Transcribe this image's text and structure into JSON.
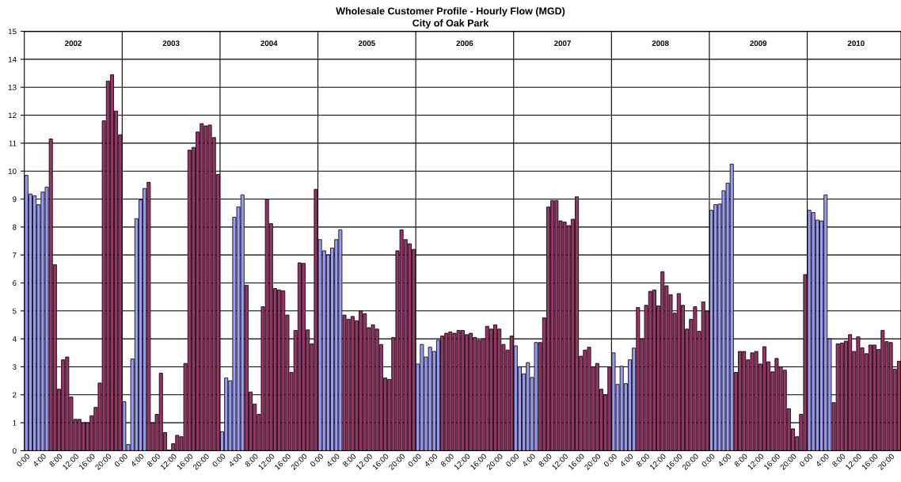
{
  "chart_data": {
    "type": "bar",
    "title": "Wholesale Customer Profile - Hourly Flow (MGD)",
    "subtitle": "City of Oak Park",
    "categories": [
      "0:00",
      null,
      null,
      null,
      "4:00",
      null,
      null,
      null,
      "8:00",
      null,
      null,
      null,
      "12:00",
      null,
      null,
      null,
      "16:00",
      null,
      null,
      null,
      "20:00",
      null,
      null,
      null,
      "0:00",
      null,
      null,
      null,
      "4:00",
      null,
      null,
      null,
      "8:00",
      null,
      null,
      null,
      "12:00",
      null,
      null,
      null,
      "16:00",
      null,
      null,
      null,
      "20:00",
      null,
      null,
      null,
      "0:00",
      null,
      null,
      null,
      "4:00",
      null,
      null,
      null,
      "8:00",
      null,
      null,
      null,
      "12:00",
      null,
      null,
      null,
      "16:00",
      null,
      null,
      null,
      "20:00",
      null,
      null,
      null,
      "0:00",
      null,
      null,
      null,
      "4:00",
      null,
      null,
      null,
      "8:00",
      null,
      null,
      null,
      "12:00",
      null,
      null,
      null,
      "16:00",
      null,
      null,
      null,
      "20:00",
      null,
      null,
      null,
      "0:00",
      null,
      null,
      null,
      "4:00",
      null,
      null,
      null,
      "8:00",
      null,
      null,
      null,
      "12:00",
      null,
      null,
      null,
      "16:00",
      null,
      null,
      null,
      "20:00",
      null,
      null,
      null,
      "0:00",
      null,
      null,
      null,
      "4:00",
      null,
      null,
      null,
      "8:00",
      null,
      null,
      null,
      "12:00",
      null,
      null,
      null,
      "16:00",
      null,
      null,
      null,
      "20:00",
      null,
      null,
      null,
      "0:00",
      null,
      null,
      null,
      "4:00",
      null,
      null,
      null,
      "8:00",
      null,
      null,
      null,
      "12:00",
      null,
      null,
      null,
      "16:00",
      null,
      null,
      null,
      "20:00",
      null,
      null,
      null,
      "0:00",
      null,
      null,
      null,
      "4:00",
      null,
      null,
      null,
      "8:00",
      null,
      null,
      null,
      "12:00",
      null,
      null,
      null,
      "16:00",
      null,
      null,
      null,
      "20:00",
      null,
      null,
      null,
      "0:00",
      null,
      null,
      null,
      "4:00",
      null,
      null,
      null,
      "8:00",
      null,
      null,
      null,
      "12:00",
      null,
      null,
      null,
      "16:00",
      null,
      null,
      null,
      "20:00",
      null,
      null
    ],
    "values": [
      9.85,
      9.18,
      9.12,
      8.8,
      9.25,
      9.43,
      11.15,
      6.65,
      2.2,
      3.25,
      3.35,
      1.92,
      1.12,
      1.12,
      1.0,
      1.0,
      1.25,
      1.55,
      2.42,
      11.8,
      13.22,
      13.45,
      12.15,
      11.3,
      1.75,
      0.22,
      3.28,
      8.3,
      8.97,
      9.38,
      9.6,
      1.0,
      1.3,
      2.77,
      0.65,
      0.02,
      0.25,
      0.55,
      0.5,
      3.12,
      10.75,
      10.85,
      11.4,
      11.7,
      11.62,
      11.65,
      11.2,
      9.88,
      0.68,
      2.6,
      2.5,
      8.35,
      8.72,
      9.15,
      5.92,
      2.1,
      1.67,
      1.3,
      5.15,
      9.0,
      8.12,
      5.8,
      5.75,
      5.72,
      4.85,
      2.8,
      4.3,
      6.72,
      6.7,
      4.32,
      3.82,
      9.35,
      7.55,
      7.15,
      7.0,
      7.25,
      7.55,
      7.9,
      4.85,
      4.7,
      4.8,
      4.65,
      5.0,
      4.9,
      4.4,
      4.5,
      4.35,
      3.8,
      2.6,
      2.55,
      4.05,
      7.15,
      7.9,
      7.55,
      7.4,
      7.2,
      3.1,
      3.8,
      3.35,
      3.7,
      3.55,
      3.95,
      4.1,
      4.2,
      4.25,
      4.2,
      4.3,
      4.3,
      4.15,
      4.2,
      4.05,
      3.95,
      4.0,
      4.45,
      4.35,
      4.5,
      4.35,
      3.8,
      3.6,
      4.1,
      3.75,
      3.0,
      2.75,
      3.15,
      2.62,
      3.87,
      3.87,
      4.75,
      8.72,
      8.95,
      8.95,
      8.22,
      8.18,
      8.05,
      8.28,
      9.08,
      3.38,
      3.6,
      3.7,
      3.0,
      3.12,
      2.2,
      2.0,
      3.0,
      3.5,
      2.37,
      3.02,
      2.4,
      3.25,
      3.67,
      5.12,
      4.0,
      5.2,
      5.7,
      5.75,
      5.18,
      6.4,
      5.9,
      5.58,
      4.92,
      5.62,
      5.2,
      4.35,
      4.7,
      5.15,
      4.27,
      5.32,
      4.98,
      8.6,
      8.8,
      8.82,
      9.3,
      9.57,
      10.25,
      2.8,
      3.55,
      3.55,
      3.25,
      3.5,
      3.55,
      3.1,
      3.72,
      3.18,
      2.82,
      3.3,
      3.0,
      2.88,
      1.5,
      0.78,
      0.5,
      1.3,
      6.3,
      8.6,
      8.52,
      8.25,
      8.22,
      9.15,
      4.0,
      1.72,
      3.82,
      3.85,
      3.92,
      4.15,
      3.55,
      4.07,
      3.68,
      3.47,
      3.78,
      3.78,
      3.62,
      4.3,
      3.9,
      3.87,
      2.92,
      3.2
    ],
    "colors": [
      "#9a9af5",
      "#9a9af5",
      "#9a9af5",
      "#9a9af5",
      "#9a9af5",
      "#9a9af5",
      "#993366",
      "#993366",
      "#993366",
      "#993366",
      "#993366",
      "#993366",
      "#993366",
      "#993366",
      "#993366",
      "#993366",
      "#993366",
      "#993366",
      "#993366",
      "#993366",
      "#993366",
      "#993366",
      "#993366",
      "#993366",
      "#9a9af5",
      "#9a9af5",
      "#9a9af5",
      "#9a9af5",
      "#9a9af5",
      "#9a9af5",
      "#993366",
      "#993366",
      "#993366",
      "#993366",
      "#993366",
      "#993366",
      "#993366",
      "#993366",
      "#993366",
      "#993366",
      "#993366",
      "#993366",
      "#993366",
      "#993366",
      "#993366",
      "#993366",
      "#993366",
      "#993366",
      "#9a9af5",
      "#9a9af5",
      "#9a9af5",
      "#9a9af5",
      "#9a9af5",
      "#9a9af5",
      "#993366",
      "#993366",
      "#993366",
      "#993366",
      "#993366",
      "#993366",
      "#993366",
      "#993366",
      "#993366",
      "#993366",
      "#993366",
      "#993366",
      "#993366",
      "#993366",
      "#993366",
      "#993366",
      "#993366",
      "#993366",
      "#9a9af5",
      "#9a9af5",
      "#9a9af5",
      "#9a9af5",
      "#9a9af5",
      "#9a9af5",
      "#993366",
      "#993366",
      "#993366",
      "#993366",
      "#993366",
      "#993366",
      "#993366",
      "#993366",
      "#993366",
      "#993366",
      "#993366",
      "#993366",
      "#993366",
      "#993366",
      "#993366",
      "#993366",
      "#993366",
      "#993366",
      "#9a9af5",
      "#9a9af5",
      "#9a9af5",
      "#9a9af5",
      "#9a9af5",
      "#9a9af5",
      "#993366",
      "#993366",
      "#993366",
      "#993366",
      "#993366",
      "#993366",
      "#993366",
      "#993366",
      "#993366",
      "#993366",
      "#993366",
      "#993366",
      "#993366",
      "#993366",
      "#993366",
      "#993366",
      "#993366",
      "#993366",
      "#9a9af5",
      "#9a9af5",
      "#9a9af5",
      "#9a9af5",
      "#9a9af5",
      "#9a9af5",
      "#993366",
      "#993366",
      "#993366",
      "#993366",
      "#993366",
      "#993366",
      "#993366",
      "#993366",
      "#993366",
      "#993366",
      "#993366",
      "#993366",
      "#993366",
      "#993366",
      "#993366",
      "#993366",
      "#993366",
      "#993366",
      "#9a9af5",
      "#9a9af5",
      "#9a9af5",
      "#9a9af5",
      "#9a9af5",
      "#9a9af5",
      "#993366",
      "#993366",
      "#993366",
      "#993366",
      "#993366",
      "#993366",
      "#993366",
      "#993366",
      "#993366",
      "#993366",
      "#993366",
      "#993366",
      "#993366",
      "#993366",
      "#993366",
      "#993366",
      "#993366",
      "#993366",
      "#9a9af5",
      "#9a9af5",
      "#9a9af5",
      "#9a9af5",
      "#9a9af5",
      "#9a9af5",
      "#993366",
      "#993366",
      "#993366",
      "#993366",
      "#993366",
      "#993366",
      "#993366",
      "#993366",
      "#993366",
      "#993366",
      "#993366",
      "#993366",
      "#993366",
      "#993366",
      "#993366",
      "#993366",
      "#993366",
      "#993366",
      "#9a9af5",
      "#9a9af5",
      "#9a9af5",
      "#9a9af5",
      "#9a9af5",
      "#9a9af5",
      "#993366",
      "#993366",
      "#993366",
      "#993366",
      "#993366",
      "#993366",
      "#993366",
      "#993366",
      "#993366",
      "#993366",
      "#993366",
      "#993366",
      "#993366",
      "#993366",
      "#993366",
      "#993366",
      "#993366"
    ],
    "ylim": [
      0,
      15
    ],
    "yticks": [
      0,
      1,
      2,
      3,
      4,
      5,
      6,
      7,
      8,
      9,
      10,
      11,
      12,
      13,
      14,
      15
    ],
    "grid": "y",
    "annotations": [
      "2002",
      "2003",
      "2004",
      "2005",
      "2006",
      "2007",
      "2008",
      "2009",
      "2010"
    ]
  }
}
